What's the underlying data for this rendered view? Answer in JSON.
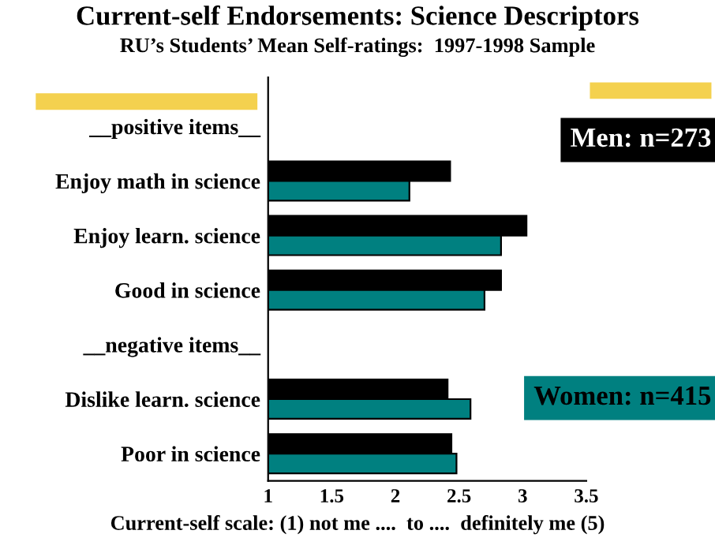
{
  "chart_data": {
    "type": "bar",
    "orientation": "horizontal",
    "title": "Current-self Endorsements: Science Descriptors",
    "subtitle": "RU’s Students’ Mean Self-ratings:  1997-1998 Sample",
    "xlabel": "Current-self scale: (1) not me ....  to ....  definitely me (5)",
    "categories": [
      "__positive items__",
      "Enjoy math in science",
      "Enjoy learn. science",
      "Good in science",
      "__negative items__",
      "Dislike learn. science",
      "Poor in science"
    ],
    "series": [
      {
        "name": "Men: n=273",
        "color": "#000000",
        "values": [
          null,
          2.43,
          3.03,
          2.83,
          null,
          2.41,
          2.44
        ]
      },
      {
        "name": "Women: n=415",
        "color": "#008080",
        "values": [
          null,
          2.11,
          2.83,
          2.7,
          null,
          2.59,
          2.48
        ]
      }
    ],
    "xlim": [
      1,
      3.5
    ],
    "xticks": [
      1,
      1.5,
      2,
      2.5,
      3,
      3.5
    ],
    "grid": false,
    "legend": false
  }
}
